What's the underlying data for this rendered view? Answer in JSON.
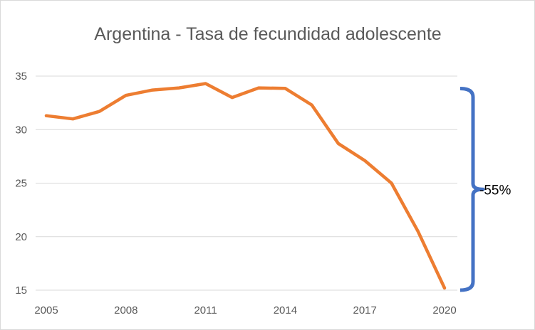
{
  "chart_data": {
    "type": "line",
    "title": "Argentina - Tasa de fecundidad adolescente",
    "xlabel": "",
    "ylabel": "",
    "x": [
      2005,
      2006,
      2007,
      2008,
      2009,
      2010,
      2011,
      2012,
      2013,
      2014,
      2015,
      2016,
      2017,
      2018,
      2019,
      2020
    ],
    "series": [
      {
        "values": [
          31.3,
          31.0,
          31.7,
          33.2,
          33.7,
          33.9,
          34.3,
          33.0,
          33.9,
          33.85,
          32.3,
          28.7,
          27.1,
          25.0,
          20.5,
          15.2
        ]
      }
    ],
    "x_ticks": [
      "2005",
      "2008",
      "2011",
      "2014",
      "2017",
      "2020"
    ],
    "y_ticks": [
      "15",
      "20",
      "25",
      "30",
      "35"
    ],
    "xlim": [
      2005,
      2020
    ],
    "ylim": [
      15,
      35
    ],
    "grid": true,
    "series_color": "#ed7d31",
    "annotation": {
      "text": "-55%",
      "color": "#4472c4"
    }
  }
}
